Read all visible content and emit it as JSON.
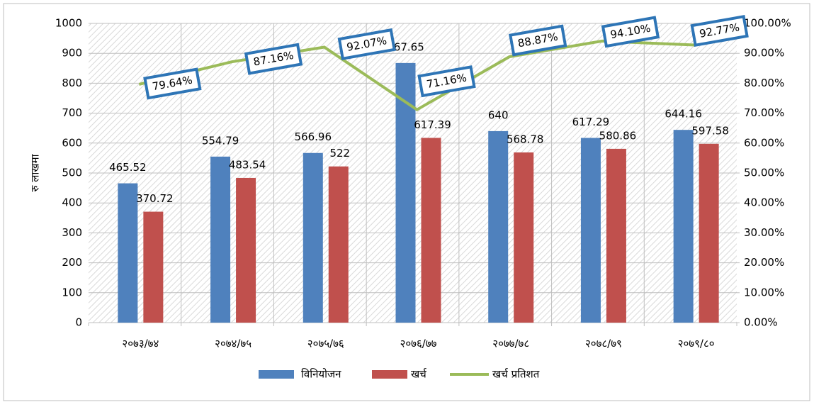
{
  "chart_data": {
    "type": "bar_line",
    "y_label": "रु लाखमा",
    "categories": [
      "२०७३/७४",
      "२०७४/७५",
      "२०७५/७६",
      "२०७६/७७",
      "२०७७/७८",
      "२०७८/७९",
      "२०७९/८०"
    ],
    "series": [
      {
        "name": "विनियोजन",
        "color": "#4f81bd",
        "values": [
          465.52,
          554.79,
          566.96,
          867.65,
          640,
          617.29,
          644.16
        ]
      },
      {
        "name": "खर्च",
        "color": "#c0504d",
        "values": [
          370.72,
          483.54,
          522,
          617.39,
          568.78,
          580.86,
          597.58
        ]
      },
      {
        "name": "खर्च प्रतिशत",
        "color": "#9bbb59",
        "axis": "y2",
        "values": [
          79.64,
          87.16,
          92.07,
          71.16,
          88.87,
          94.1,
          92.77
        ],
        "value_labels": [
          "79.64%",
          "87.16%",
          "92.07%",
          "71.16%",
          "88.87%",
          "94.10%",
          "92.77%"
        ]
      }
    ],
    "ylim": [
      0,
      1000
    ],
    "yticks": [
      0,
      100,
      200,
      300,
      400,
      500,
      600,
      700,
      800,
      900,
      1000
    ],
    "y2lim": [
      0,
      100
    ],
    "y2ticks": [
      {
        "value": 0,
        "label": "0.00%"
      },
      {
        "value": 10,
        "label": "10.00%"
      },
      {
        "value": 20,
        "label": "20.00%"
      },
      {
        "value": 30,
        "label": "30.00%"
      },
      {
        "value": 40,
        "label": "40.00%"
      },
      {
        "value": 50,
        "label": "50.00%"
      },
      {
        "value": 60,
        "label": "60.00%"
      },
      {
        "value": 70,
        "label": "70.00%"
      },
      {
        "value": 80,
        "label": "80.00%"
      },
      {
        "value": 90,
        "label": "90.00%"
      },
      {
        "value": 100,
        "label": "100.00%"
      }
    ],
    "grid": true,
    "legend": "bottom"
  }
}
